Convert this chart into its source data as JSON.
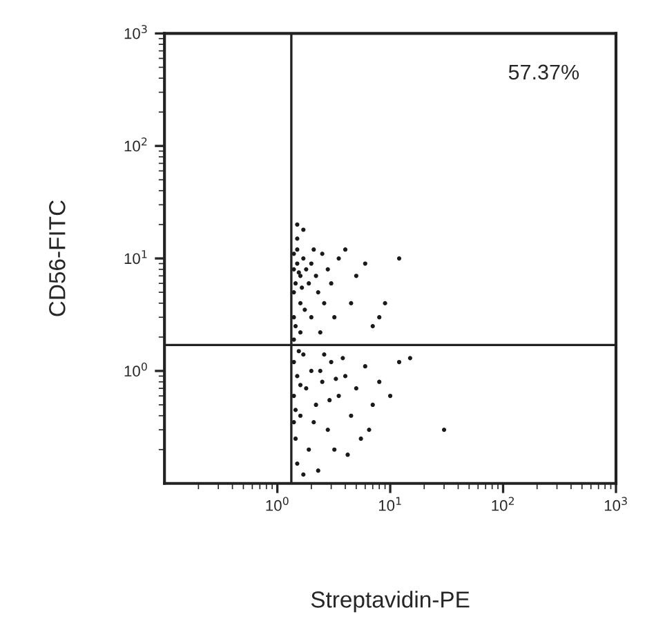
{
  "chart_data": {
    "type": "scatter",
    "xlabel": "Streptavidin-PE",
    "ylabel": "CD56-FITC",
    "log": "xy",
    "grid": false,
    "marker": "circle",
    "xlim": [
      0.1,
      1000
    ],
    "ylim": [
      0.1,
      1000
    ],
    "xticks": [
      {
        "value": 1,
        "label": "10$^{0}$"
      },
      {
        "value": 10,
        "label": "10$^{1}$"
      },
      {
        "value": 100,
        "label": "10$^{2}$"
      },
      {
        "value": 1000,
        "label": "10$^{3}$"
      }
    ],
    "yticks": [
      {
        "value": 1,
        "label": "10$^{0}$"
      },
      {
        "value": 10,
        "label": "10$^{1}$"
      },
      {
        "value": 100,
        "label": "10$^{2}$"
      },
      {
        "value": 1000,
        "label": "10$^{3}$"
      }
    ],
    "ref_lines": [
      {
        "axis": "x",
        "value": 1.33,
        "color": "#222222"
      },
      {
        "axis": "y",
        "value": 1.7,
        "color": "#222222"
      }
    ],
    "annotations": [
      "57.37%"
    ],
    "series": [
      {
        "color": "#1a1a1a",
        "x": [
          1.4,
          1.5,
          1.45,
          1.6,
          1.4,
          1.7,
          1.5,
          1.8,
          1.6,
          1.4,
          1.9,
          2.0,
          2.2,
          1.5,
          1.7,
          2.5,
          2.3,
          1.45,
          1.6,
          2.0,
          2.8,
          3.0,
          3.5,
          4,
          2.6,
          1.5,
          5,
          4.5,
          6,
          8,
          7,
          12,
          1.4,
          1.55,
          1.65,
          1.75,
          2.1,
          3.2,
          1.4,
          2.4,
          9,
          1.4,
          1.5,
          1.4,
          1.6,
          1.45,
          1.5,
          1.7,
          1.8,
          2.0,
          2.2,
          2.5,
          2.8,
          3.0,
          3.5,
          4.0,
          4.5,
          5.0,
          6.0,
          7.0,
          8.0,
          1.9,
          2.3,
          3.2,
          1.4,
          1.55,
          2.6,
          3.8,
          5.5,
          10,
          12,
          1.6,
          2.1,
          2.9,
          4.2,
          1.45,
          1.7,
          6.5,
          30,
          15,
          2.4,
          3.3
        ],
        "values": [
          8,
          9,
          6,
          7,
          5,
          10,
          12,
          8,
          4,
          3,
          6,
          9,
          7,
          15,
          18,
          11,
          5,
          2.5,
          2.2,
          3,
          8,
          6,
          10,
          12,
          4,
          20,
          7,
          4,
          9,
          3,
          2.5,
          10,
          11,
          7.5,
          5.5,
          3.5,
          12,
          3,
          1.9,
          2.2,
          4,
          1.2,
          0.9,
          0.6,
          0.4,
          0.25,
          0.15,
          1.4,
          0.7,
          1.0,
          0.5,
          0.8,
          0.3,
          1.2,
          0.6,
          0.9,
          0.4,
          0.7,
          1.1,
          0.5,
          0.8,
          0.2,
          0.13,
          0.2,
          0.35,
          1.5,
          1.4,
          1.3,
          0.25,
          0.6,
          1.2,
          0.75,
          0.35,
          0.55,
          0.18,
          0.45,
          0.12,
          0.3,
          0.3,
          1.3,
          1.0,
          0.85
        ]
      }
    ]
  }
}
